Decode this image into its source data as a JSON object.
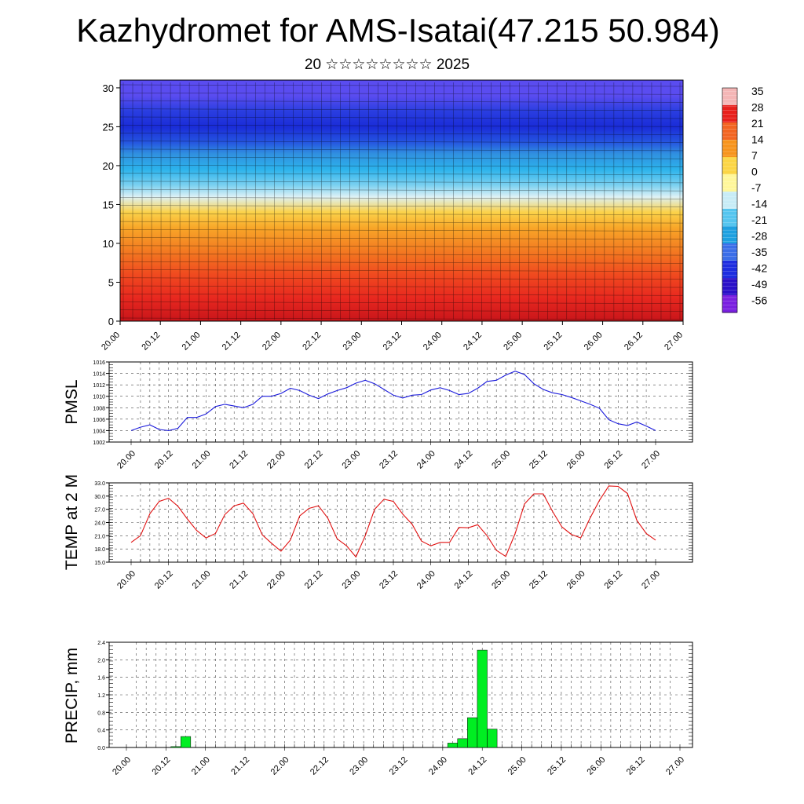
{
  "title": "Kazhydromet for AMS-Isatai(47.215 50.984)",
  "subtitle": "20 ☆☆☆☆☆☆☆☆ 2025",
  "x_ticks": [
    "20.00",
    "20.12",
    "21.00",
    "21.12",
    "22.00",
    "22.12",
    "23.00",
    "23.12",
    "24.00",
    "24.12",
    "25.00",
    "25.12",
    "26.00",
    "26.12",
    "27.00"
  ],
  "chart_data": [
    {
      "type": "heatmap",
      "name": "cross-section",
      "y_ticks": [
        0,
        5,
        10,
        15,
        20,
        25,
        30
      ],
      "ylim": [
        0,
        31
      ],
      "colorbar": {
        "labels": [
          "35",
          "28",
          "21",
          "14",
          "7",
          "0",
          "-7",
          "-14",
          "-21",
          "-28",
          "-35",
          "-42",
          "-49",
          "-56"
        ],
        "colors": [
          "#f4b6b6",
          "#e8201c",
          "#f26522",
          "#f7941d",
          "#fbd545",
          "#fff79a",
          "#c8ecf6",
          "#55c5ef",
          "#1ea0e0",
          "#3b6ee8",
          "#1e2de0",
          "#2a10c8",
          "#7a20e0"
        ]
      },
      "layers": [
        {
          "z": 0,
          "color": "#c8151a"
        },
        {
          "z": 3,
          "color": "#e8281f"
        },
        {
          "z": 6,
          "color": "#f04a1f"
        },
        {
          "z": 9,
          "color": "#f37a21"
        },
        {
          "z": 12,
          "color": "#f8a628"
        },
        {
          "z": 14,
          "color": "#fbd24a"
        },
        {
          "z": 16,
          "color": "#dcf1f6"
        },
        {
          "z": 17.5,
          "color": "#7ad0f0"
        },
        {
          "z": 19.5,
          "color": "#2cb3ec"
        },
        {
          "z": 21.5,
          "color": "#3090e0"
        },
        {
          "z": 23,
          "color": "#2555e0"
        },
        {
          "z": 25,
          "color": "#1a2cd8"
        },
        {
          "z": 27,
          "color": "#2a3ee0"
        },
        {
          "z": 29,
          "color": "#5a4cf0"
        }
      ]
    },
    {
      "type": "line",
      "ylabel": "PMSL",
      "ylim": [
        1002,
        1016
      ],
      "y_ticks": [
        1002,
        1004,
        1006,
        1008,
        1010,
        1012,
        1014,
        1016
      ],
      "color": "#1a1adb",
      "x_hours": [
        0,
        3,
        6,
        9,
        12,
        15,
        18,
        21,
        24,
        27,
        30,
        33,
        36,
        39,
        42,
        45,
        48,
        51,
        54,
        57,
        60,
        63,
        66,
        69,
        72,
        75,
        78,
        81,
        84,
        87,
        90,
        93,
        96,
        99,
        102,
        105,
        108,
        111,
        114,
        117,
        120,
        123,
        126,
        129,
        132,
        135,
        138,
        141,
        144,
        147,
        150,
        153,
        156,
        159,
        162,
        165,
        168
      ],
      "values": [
        1004.0,
        1004.6,
        1005.0,
        1004.2,
        1004.0,
        1004.4,
        1006.3,
        1006.3,
        1006.9,
        1008.2,
        1008.6,
        1008.3,
        1008.0,
        1008.6,
        1010.0,
        1010.0,
        1010.5,
        1011.4,
        1011.0,
        1010.2,
        1009.6,
        1010.4,
        1011.0,
        1011.5,
        1012.3,
        1012.8,
        1012.2,
        1011.2,
        1010.2,
        1009.7,
        1010.2,
        1010.3,
        1011.1,
        1011.5,
        1011.0,
        1010.3,
        1010.5,
        1011.4,
        1012.6,
        1012.8,
        1013.7,
        1014.4,
        1013.8,
        1012.2,
        1011.2,
        1010.6,
        1010.3,
        1009.8,
        1009.2,
        1008.6,
        1007.9,
        1005.9,
        1005.2,
        1004.9,
        1005.5,
        1004.8,
        1004.0
      ]
    },
    {
      "type": "line",
      "ylabel": "TEMP at 2 M",
      "ylim": [
        15.0,
        33.0
      ],
      "y_ticks": [
        "15.0",
        "18.0",
        "21.0",
        "24.0",
        "27.0",
        "30.0",
        "33.0"
      ],
      "color": "#e01010",
      "x_hours": [
        0,
        3,
        6,
        9,
        12,
        15,
        18,
        21,
        24,
        27,
        30,
        33,
        36,
        39,
        42,
        45,
        48,
        51,
        54,
        57,
        60,
        63,
        66,
        69,
        72,
        75,
        78,
        81,
        84,
        87,
        90,
        93,
        96,
        99,
        102,
        105,
        108,
        111,
        114,
        117,
        120,
        123,
        126,
        129,
        132,
        135,
        138,
        141,
        144,
        147,
        150,
        153,
        156,
        159,
        162,
        165,
        168
      ],
      "values": [
        19.5,
        21.0,
        26.0,
        28.8,
        29.5,
        27.7,
        24.8,
        22.2,
        20.5,
        21.5,
        25.8,
        27.8,
        28.4,
        26.0,
        21.2,
        19.3,
        17.5,
        20.0,
        25.5,
        27.2,
        27.8,
        25.0,
        20.3,
        18.7,
        16.2,
        21.0,
        27.0,
        29.3,
        28.8,
        25.9,
        23.6,
        19.8,
        18.7,
        19.5,
        19.5,
        22.9,
        22.8,
        23.5,
        21.0,
        17.7,
        16.3,
        21.5,
        28.2,
        30.5,
        30.5,
        26.5,
        23.0,
        21.3,
        20.5,
        25.0,
        29.0,
        32.3,
        32.2,
        30.6,
        24.5,
        21.5,
        20.0
      ]
    },
    {
      "type": "bar",
      "ylabel": "PRECIP, mm",
      "ylim": [
        0.0,
        2.4
      ],
      "y_ticks": [
        "0.0",
        "0.4",
        "0.8",
        "1.2",
        "1.6",
        "2.0",
        "2.4"
      ],
      "color": "#00ee22",
      "x_hours": [
        0,
        3,
        6,
        9,
        12,
        15,
        18,
        21,
        24,
        27,
        30,
        33,
        36,
        39,
        42,
        45,
        48,
        51,
        54,
        57,
        60,
        63,
        66,
        69,
        72,
        75,
        78,
        81,
        84,
        87,
        90,
        93,
        96,
        99,
        102,
        105,
        108,
        111,
        114,
        117,
        120,
        123,
        126,
        129,
        132,
        135,
        138,
        141,
        144,
        147,
        150,
        153,
        156,
        159,
        162,
        165,
        168
      ],
      "values": [
        0,
        0,
        0,
        0,
        0,
        0.02,
        0.25,
        0,
        0,
        0,
        0,
        0,
        0,
        0,
        0,
        0,
        0,
        0,
        0,
        0,
        0,
        0,
        0,
        0,
        0,
        0,
        0,
        0,
        0,
        0,
        0,
        0,
        0,
        0.1,
        0.2,
        0.68,
        2.22,
        0.42,
        0,
        0,
        0,
        0,
        0,
        0,
        0,
        0,
        0,
        0,
        0,
        0,
        0,
        0,
        0,
        0,
        0,
        0,
        0
      ]
    }
  ]
}
